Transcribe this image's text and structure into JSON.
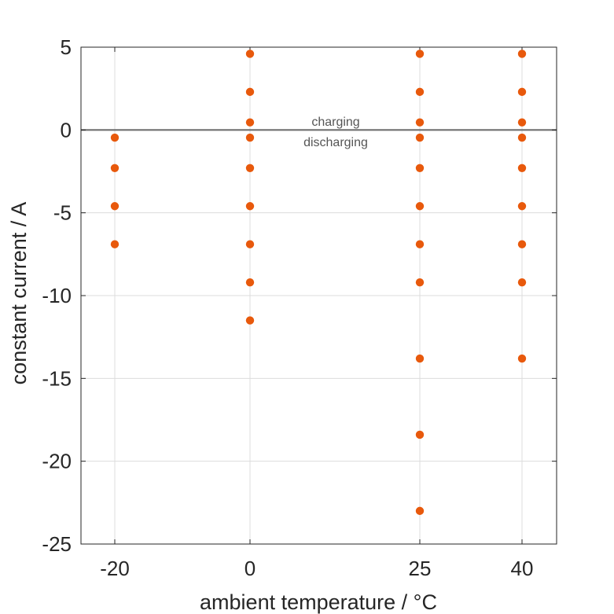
{
  "chart_data": {
    "type": "scatter",
    "xlabel": "ambient temperature / °C",
    "ylabel": "constant current / A",
    "xticks": [
      -20,
      0,
      25,
      40
    ],
    "yticks": [
      5,
      0,
      -5,
      -10,
      -15,
      -20,
      -25
    ],
    "ylim": [
      -25,
      5
    ],
    "grid": true,
    "marker_color": "#e8590c",
    "reference_line": {
      "y": 0,
      "color": "#707070"
    },
    "annotations": {
      "above": "charging",
      "below": "discharging"
    },
    "series": [
      {
        "points": [
          {
            "x": -20,
            "y": -0.46
          },
          {
            "x": -20,
            "y": -2.3
          },
          {
            "x": -20,
            "y": -4.6
          },
          {
            "x": -20,
            "y": -6.9
          },
          {
            "x": 0,
            "y": 4.6
          },
          {
            "x": 0,
            "y": 2.3
          },
          {
            "x": 0,
            "y": 0.46
          },
          {
            "x": 0,
            "y": -0.46
          },
          {
            "x": 0,
            "y": -2.3
          },
          {
            "x": 0,
            "y": -4.6
          },
          {
            "x": 0,
            "y": -6.9
          },
          {
            "x": 0,
            "y": -9.2
          },
          {
            "x": 0,
            "y": -11.5
          },
          {
            "x": 25,
            "y": 4.6
          },
          {
            "x": 25,
            "y": 2.3
          },
          {
            "x": 25,
            "y": 0.46
          },
          {
            "x": 25,
            "y": -0.46
          },
          {
            "x": 25,
            "y": -2.3
          },
          {
            "x": 25,
            "y": -4.6
          },
          {
            "x": 25,
            "y": -6.9
          },
          {
            "x": 25,
            "y": -9.2
          },
          {
            "x": 25,
            "y": -13.8
          },
          {
            "x": 25,
            "y": -18.4
          },
          {
            "x": 25,
            "y": -23.0
          },
          {
            "x": 40,
            "y": 4.6
          },
          {
            "x": 40,
            "y": 2.3
          },
          {
            "x": 40,
            "y": 0.46
          },
          {
            "x": 40,
            "y": -0.46
          },
          {
            "x": 40,
            "y": -2.3
          },
          {
            "x": 40,
            "y": -4.6
          },
          {
            "x": 40,
            "y": -6.9
          },
          {
            "x": 40,
            "y": -9.2
          },
          {
            "x": 40,
            "y": -13.8
          }
        ]
      }
    ]
  }
}
